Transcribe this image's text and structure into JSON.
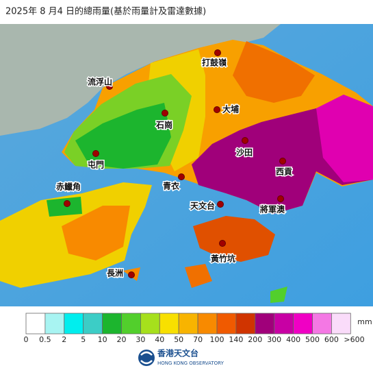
{
  "header": {
    "title": "2025年 8 月4 日的總雨量(基於雨量計及雷達數據)"
  },
  "places": [
    "打鼓嶺",
    "流浮山",
    "石崗",
    "大埔",
    "沙田",
    "屯門",
    "西貢",
    "青衣",
    "赤鱲角",
    "天文台",
    "將軍澳",
    "黃竹坑",
    "長洲"
  ],
  "legend": {
    "unit": "mm",
    "colors": [
      "#ffffff",
      "#a8f4f2",
      "#00eeee",
      "#3ccdc6",
      "#1cb52e",
      "#52cf2c",
      "#a6e01c",
      "#f8e000",
      "#f8b400",
      "#f88a00",
      "#f05a00",
      "#d03400",
      "#a0007a",
      "#c800a4",
      "#f000c4",
      "#f478e4",
      "#fadcfa"
    ],
    "labels": [
      "0",
      "0.5",
      "2",
      "5",
      "10",
      "20",
      "30",
      "40",
      "50",
      "70",
      "100",
      "140",
      "200",
      "300",
      "400",
      "500",
      "600",
      ">600"
    ]
  },
  "footer": {
    "org_zh": "香港天文台",
    "org_en": "HONG KONG OBSERVATORY"
  }
}
